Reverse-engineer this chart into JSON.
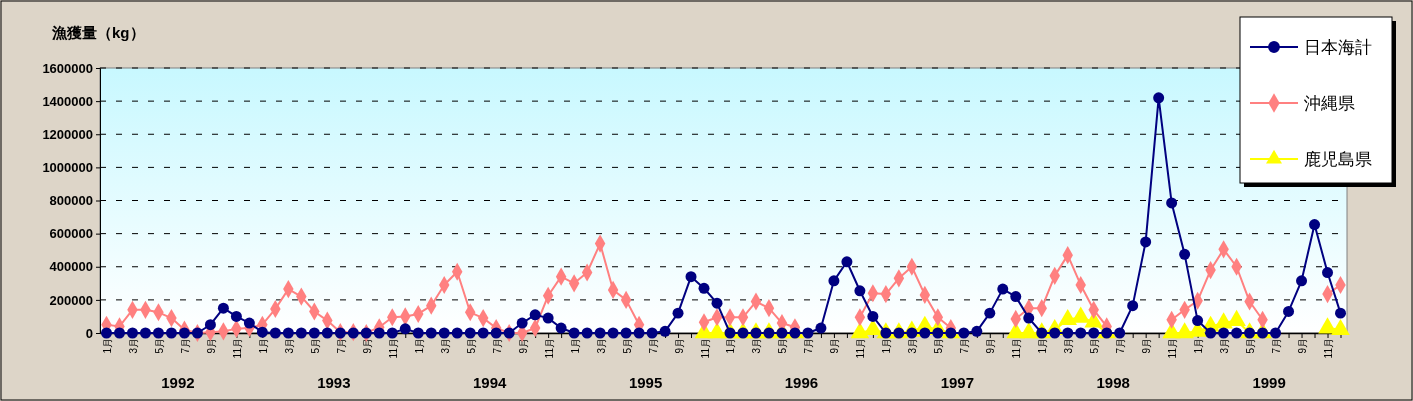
{
  "chart_data": {
    "type": "line",
    "ylabel": "漁獲量（kg）",
    "categories": [
      "1月",
      null,
      "3月",
      null,
      "5月",
      null,
      "7月",
      null,
      "9月",
      null,
      "11月",
      null,
      "1月",
      null,
      "3月",
      null,
      "5月",
      null,
      "7月",
      null,
      "9月",
      null,
      "11月",
      null,
      "1月",
      null,
      "3月",
      null,
      "5月",
      null,
      "7月",
      null,
      "9月",
      null,
      "11月",
      null,
      "1月",
      null,
      "3月",
      null,
      "5月",
      null,
      "7月",
      null,
      "9月",
      null,
      "11月",
      null,
      "1月",
      null,
      "3月",
      null,
      "5月",
      null,
      "7月",
      null,
      "9月",
      null,
      "11月",
      null,
      "1月",
      null,
      "3月",
      null,
      "5月",
      null,
      "7月",
      null,
      "9月",
      null,
      "11月",
      null,
      "1月",
      null,
      "3月",
      null,
      "5月",
      null,
      "7月",
      null,
      "9月",
      null,
      "11月",
      null,
      "1月",
      null,
      "3月",
      null,
      "5月",
      null,
      "7月",
      null,
      "9月",
      null,
      "11月",
      null
    ],
    "annotations": [
      "1992",
      "1993",
      "1994",
      "1995",
      "1996",
      "1997",
      "1998",
      "1999"
    ],
    "ylim": [
      0,
      1600000
    ],
    "yticks": [
      0,
      200000,
      400000,
      600000,
      800000,
      1000000,
      1200000,
      1400000,
      1600000
    ],
    "grid": "y",
    "legend": "top right",
    "line_style": "solid",
    "series": [
      {
        "name": "日本海計",
        "color": "#000080",
        "marker": "circle",
        "values": [
          0,
          0,
          0,
          0,
          0,
          0,
          0,
          0,
          50000,
          150000,
          100000,
          60000,
          5000,
          0,
          0,
          0,
          0,
          0,
          0,
          0,
          0,
          0,
          0,
          25000,
          0,
          0,
          0,
          0,
          0,
          0,
          0,
          0,
          60000,
          110000,
          90000,
          30000,
          0,
          0,
          0,
          0,
          0,
          0,
          0,
          10000,
          120000,
          340000,
          270000,
          180000,
          0,
          0,
          0,
          0,
          0,
          0,
          0,
          30000,
          315000,
          430000,
          255000,
          100000,
          0,
          0,
          0,
          0,
          0,
          0,
          0,
          10000,
          120000,
          265000,
          220000,
          90000,
          0,
          0,
          0,
          0,
          0,
          0,
          0,
          165000,
          550000,
          1420000,
          785000,
          475000,
          75000,
          0,
          0,
          0,
          0,
          0,
          0,
          130000,
          315000,
          655000,
          365000,
          120000
        ]
      },
      {
        "name": "沖縄県",
        "color": "#ff8080",
        "marker": "diamond",
        "values": [
          50000,
          40000,
          140000,
          140000,
          125000,
          90000,
          20000,
          0,
          5000,
          10000,
          25000,
          30000,
          50000,
          145000,
          265000,
          220000,
          130000,
          75000,
          5000,
          5000,
          0,
          35000,
          95000,
          100000,
          115000,
          165000,
          290000,
          370000,
          125000,
          90000,
          30000,
          0,
          0,
          30000,
          225000,
          340000,
          300000,
          365000,
          540000,
          260000,
          200000,
          50000,
          null,
          null,
          null,
          null,
          65000,
          95000,
          95000,
          95000,
          190000,
          150000,
          60000,
          35000,
          null,
          null,
          null,
          null,
          95000,
          240000,
          235000,
          330000,
          400000,
          230000,
          95000,
          30000,
          null,
          null,
          null,
          null,
          85000,
          150000,
          150000,
          345000,
          470000,
          290000,
          140000,
          40000,
          null,
          null,
          null,
          null,
          80000,
          140000,
          195000,
          380000,
          505000,
          400000,
          190000,
          80000,
          null,
          null,
          null,
          null,
          235000,
          290000
        ]
      },
      {
        "name": "鹿児島県",
        "color": "#ffff00",
        "marker": "triangle",
        "values": [
          null,
          null,
          null,
          null,
          null,
          null,
          null,
          null,
          null,
          null,
          null,
          null,
          null,
          null,
          null,
          null,
          null,
          null,
          null,
          null,
          null,
          null,
          null,
          null,
          null,
          null,
          null,
          null,
          null,
          null,
          null,
          null,
          null,
          null,
          null,
          null,
          null,
          null,
          null,
          null,
          null,
          null,
          null,
          null,
          null,
          null,
          0,
          0,
          0,
          0,
          0,
          0,
          0,
          0,
          null,
          null,
          null,
          null,
          0,
          20000,
          0,
          0,
          10000,
          40000,
          20000,
          0,
          null,
          null,
          null,
          null,
          0,
          0,
          0,
          20000,
          80000,
          95000,
          65000,
          0,
          null,
          null,
          null,
          null,
          0,
          0,
          10000,
          40000,
          60000,
          75000,
          0,
          0,
          null,
          null,
          null,
          null,
          30000,
          20000
        ]
      }
    ]
  }
}
